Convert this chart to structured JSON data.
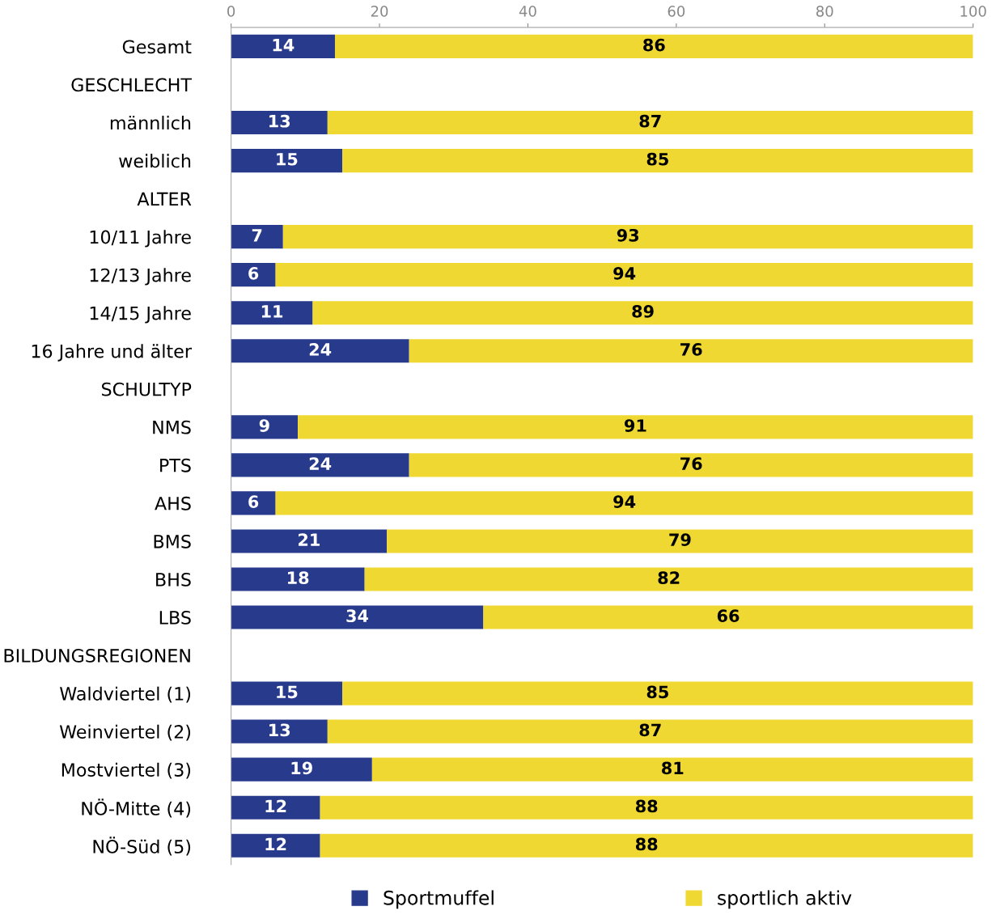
{
  "chart_data": {
    "type": "bar",
    "orientation": "horizontal",
    "stacked": true,
    "data_labels": true,
    "legend": "bottom",
    "grid": false,
    "categories": [
      "Gesamt",
      "GESCHLECHT",
      "männlich",
      "weiblich",
      "ALTER",
      "10/11 Jahre",
      "12/13 Jahre",
      "14/15 Jahre",
      "16 Jahre und älter",
      "SCHULTYP",
      "NMS",
      "PTS",
      "AHS",
      "BMS",
      "BHS",
      "LBS",
      "BILDUNGSREGIONEN",
      "Waldviertel (1)",
      "Weinviertel (2)",
      "Mostviertel (3)",
      "NÖ-Mitte (4)",
      "NÖ-Süd (5)"
    ],
    "series": [
      {
        "name": "Sportmuffel",
        "color": "#283a8c",
        "values": [
          14,
          null,
          13,
          15,
          null,
          7,
          6,
          11,
          24,
          null,
          9,
          24,
          6,
          21,
          18,
          34,
          null,
          15,
          13,
          19,
          12,
          12
        ]
      },
      {
        "name": "sportlich aktiv",
        "color": "#f0d832",
        "values": [
          86,
          null,
          87,
          85,
          null,
          93,
          94,
          89,
          76,
          null,
          91,
          76,
          94,
          79,
          82,
          66,
          null,
          85,
          87,
          81,
          88,
          88
        ]
      }
    ],
    "xlim": [
      0,
      100
    ],
    "xticks": [
      0,
      20,
      40,
      60,
      80,
      100
    ]
  }
}
